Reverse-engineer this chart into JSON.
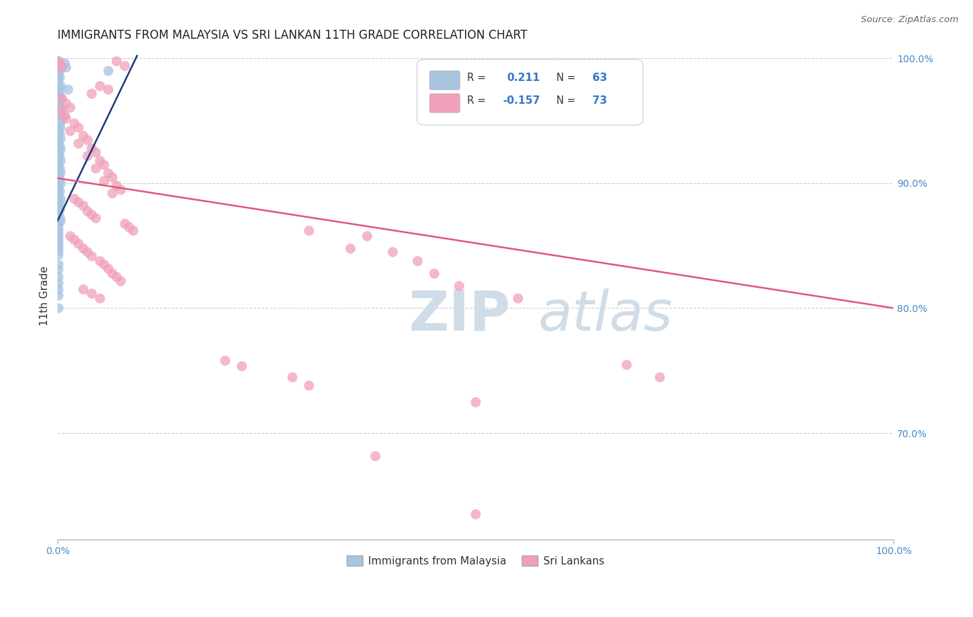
{
  "title": "IMMIGRANTS FROM MALAYSIA VS SRI LANKAN 11TH GRADE CORRELATION CHART",
  "source_text": "Source: ZipAtlas.com",
  "ylabel": "11th Grade",
  "x_min": 0.0,
  "x_max": 1.0,
  "y_min": 0.615,
  "y_max": 1.005,
  "r_blue": 0.211,
  "n_blue": 63,
  "r_pink": -0.157,
  "n_pink": 73,
  "legend_label_blue": "Immigrants from Malaysia",
  "legend_label_pink": "Sri Lankans",
  "blue_color": "#a8c4e0",
  "blue_line_color": "#1a3a7a",
  "pink_color": "#f0a0b8",
  "pink_line_color": "#e05878",
  "grid_color": "#cccccc",
  "right_axis_label_color": "#4488cc",
  "watermark_color": "#d0dde8",
  "blue_line_x0": 0.0,
  "blue_line_y0": 0.87,
  "blue_line_x1": 0.095,
  "blue_line_y1": 1.002,
  "pink_line_x0": 0.0,
  "pink_line_y0": 0.904,
  "pink_line_x1": 1.0,
  "pink_line_y1": 0.8,
  "blue_points": [
    [
      0.001,
      0.998
    ],
    [
      0.002,
      0.994
    ],
    [
      0.003,
      0.991
    ],
    [
      0.001,
      0.988
    ],
    [
      0.002,
      0.985
    ],
    [
      0.001,
      0.982
    ],
    [
      0.003,
      0.978
    ],
    [
      0.002,
      0.975
    ],
    [
      0.001,
      0.972
    ],
    [
      0.003,
      0.969
    ],
    [
      0.002,
      0.966
    ],
    [
      0.001,
      0.963
    ],
    [
      0.003,
      0.96
    ],
    [
      0.002,
      0.957
    ],
    [
      0.001,
      0.954
    ],
    [
      0.004,
      0.951
    ],
    [
      0.002,
      0.948
    ],
    [
      0.003,
      0.945
    ],
    [
      0.001,
      0.942
    ],
    [
      0.002,
      0.939
    ],
    [
      0.003,
      0.936
    ],
    [
      0.001,
      0.933
    ],
    [
      0.002,
      0.93
    ],
    [
      0.003,
      0.927
    ],
    [
      0.001,
      0.924
    ],
    [
      0.002,
      0.921
    ],
    [
      0.003,
      0.918
    ],
    [
      0.001,
      0.915
    ],
    [
      0.002,
      0.912
    ],
    [
      0.003,
      0.909
    ],
    [
      0.001,
      0.906
    ],
    [
      0.002,
      0.903
    ],
    [
      0.003,
      0.9
    ],
    [
      0.001,
      0.897
    ],
    [
      0.002,
      0.894
    ],
    [
      0.001,
      0.891
    ],
    [
      0.003,
      0.888
    ],
    [
      0.002,
      0.885
    ],
    [
      0.001,
      0.882
    ],
    [
      0.002,
      0.879
    ],
    [
      0.001,
      0.876
    ],
    [
      0.002,
      0.873
    ],
    [
      0.003,
      0.87
    ],
    [
      0.001,
      0.867
    ],
    [
      0.001,
      0.864
    ],
    [
      0.001,
      0.861
    ],
    [
      0.001,
      0.858
    ],
    [
      0.001,
      0.855
    ],
    [
      0.001,
      0.852
    ],
    [
      0.001,
      0.849
    ],
    [
      0.001,
      0.846
    ],
    [
      0.001,
      0.843
    ],
    [
      0.008,
      0.996
    ],
    [
      0.01,
      0.993
    ],
    [
      0.012,
      0.975
    ],
    [
      0.06,
      0.99
    ],
    [
      0.001,
      0.835
    ],
    [
      0.001,
      0.831
    ],
    [
      0.001,
      0.825
    ],
    [
      0.001,
      0.82
    ],
    [
      0.001,
      0.815
    ],
    [
      0.001,
      0.81
    ],
    [
      0.001,
      0.8
    ]
  ],
  "pink_points": [
    [
      0.001,
      0.998
    ],
    [
      0.003,
      0.995
    ],
    [
      0.004,
      0.993
    ],
    [
      0.07,
      0.998
    ],
    [
      0.08,
      0.994
    ],
    [
      0.05,
      0.978
    ],
    [
      0.06,
      0.975
    ],
    [
      0.04,
      0.972
    ],
    [
      0.005,
      0.968
    ],
    [
      0.01,
      0.964
    ],
    [
      0.015,
      0.961
    ],
    [
      0.005,
      0.958
    ],
    [
      0.008,
      0.955
    ],
    [
      0.01,
      0.952
    ],
    [
      0.02,
      0.948
    ],
    [
      0.025,
      0.945
    ],
    [
      0.015,
      0.942
    ],
    [
      0.03,
      0.938
    ],
    [
      0.035,
      0.935
    ],
    [
      0.025,
      0.932
    ],
    [
      0.04,
      0.928
    ],
    [
      0.045,
      0.925
    ],
    [
      0.035,
      0.922
    ],
    [
      0.05,
      0.918
    ],
    [
      0.055,
      0.915
    ],
    [
      0.045,
      0.912
    ],
    [
      0.06,
      0.908
    ],
    [
      0.065,
      0.905
    ],
    [
      0.055,
      0.902
    ],
    [
      0.07,
      0.898
    ],
    [
      0.075,
      0.895
    ],
    [
      0.065,
      0.892
    ],
    [
      0.02,
      0.888
    ],
    [
      0.025,
      0.885
    ],
    [
      0.03,
      0.882
    ],
    [
      0.035,
      0.878
    ],
    [
      0.04,
      0.875
    ],
    [
      0.045,
      0.872
    ],
    [
      0.08,
      0.868
    ],
    [
      0.085,
      0.865
    ],
    [
      0.09,
      0.862
    ],
    [
      0.015,
      0.858
    ],
    [
      0.02,
      0.855
    ],
    [
      0.025,
      0.852
    ],
    [
      0.03,
      0.848
    ],
    [
      0.035,
      0.845
    ],
    [
      0.04,
      0.842
    ],
    [
      0.05,
      0.838
    ],
    [
      0.055,
      0.835
    ],
    [
      0.06,
      0.832
    ],
    [
      0.065,
      0.828
    ],
    [
      0.07,
      0.825
    ],
    [
      0.075,
      0.822
    ],
    [
      0.03,
      0.815
    ],
    [
      0.04,
      0.812
    ],
    [
      0.05,
      0.808
    ],
    [
      0.3,
      0.862
    ],
    [
      0.37,
      0.858
    ],
    [
      0.35,
      0.848
    ],
    [
      0.4,
      0.845
    ],
    [
      0.43,
      0.838
    ],
    [
      0.45,
      0.828
    ],
    [
      0.48,
      0.818
    ],
    [
      0.55,
      0.808
    ],
    [
      0.2,
      0.758
    ],
    [
      0.22,
      0.754
    ],
    [
      0.28,
      0.745
    ],
    [
      0.3,
      0.738
    ],
    [
      0.5,
      0.725
    ],
    [
      0.38,
      0.682
    ],
    [
      0.5,
      0.635
    ],
    [
      0.68,
      0.755
    ],
    [
      0.72,
      0.745
    ]
  ]
}
